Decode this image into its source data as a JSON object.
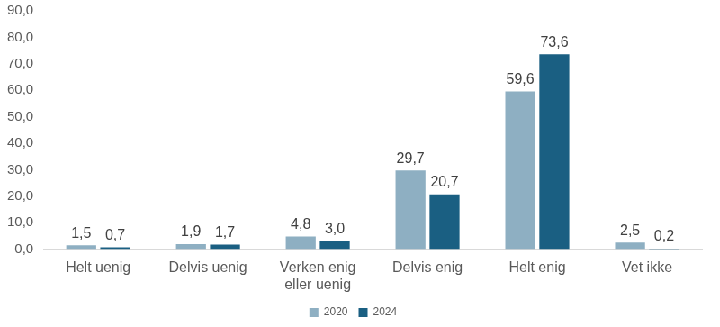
{
  "chart_data": {
    "type": "bar",
    "categories": [
      "Helt uenig",
      "Delvis uenig",
      "Verken enig eller uenig",
      "Delvis enig",
      "Helt enig",
      "Vet ikke"
    ],
    "series": [
      {
        "name": "2020",
        "color": "#8eafc2",
        "values": [
          1.5,
          1.9,
          4.8,
          29.7,
          59.6,
          2.5
        ],
        "value_labels": [
          "1,5",
          "1,9",
          "4,8",
          "29,7",
          "59,6",
          "2,5"
        ]
      },
      {
        "name": "2024",
        "color": "#1a5f82",
        "values": [
          0.7,
          1.7,
          3.0,
          20.7,
          73.6,
          0.2
        ],
        "value_labels": [
          "0,7",
          "1,7",
          "3,0",
          "20,7",
          "73,6",
          "0,2"
        ]
      }
    ],
    "ylim": [
      0,
      90
    ],
    "yticks": [
      {
        "value": 0,
        "label": "0,0"
      },
      {
        "value": 10,
        "label": "10,0"
      },
      {
        "value": 20,
        "label": "20,0"
      },
      {
        "value": 30,
        "label": "30,0"
      },
      {
        "value": 40,
        "label": "40,0"
      },
      {
        "value": 50,
        "label": "50,0"
      },
      {
        "value": 60,
        "label": "60,0"
      },
      {
        "value": 70,
        "label": "70,0"
      },
      {
        "value": 80,
        "label": "80,0"
      },
      {
        "value": 90,
        "label": "90,0"
      }
    ],
    "grid": false,
    "legend": "bottom",
    "data_labels": true
  }
}
